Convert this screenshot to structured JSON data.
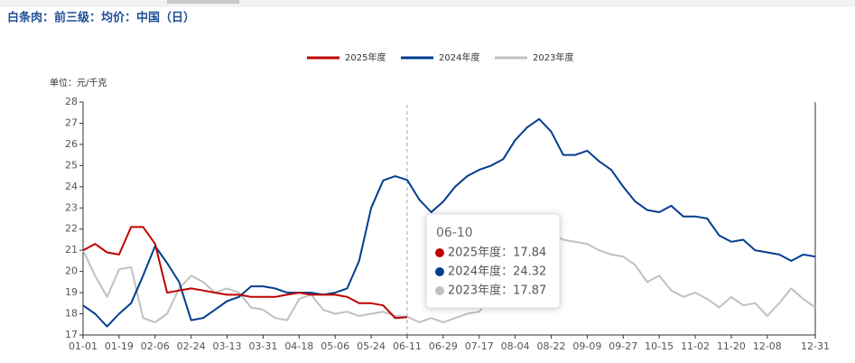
{
  "chart_data": {
    "type": "line",
    "title": "白条肉：前三级：均价：中国（日）",
    "y_label": "单位：元/千克",
    "categories": [
      "01-01",
      null,
      null,
      "01-19",
      null,
      null,
      "02-06",
      null,
      null,
      "02-24",
      null,
      null,
      "03-13",
      null,
      null,
      "03-31",
      null,
      null,
      "04-18",
      null,
      null,
      "05-06",
      null,
      null,
      "05-24",
      null,
      null,
      "06-11",
      null,
      null,
      "06-29",
      null,
      null,
      "07-17",
      null,
      null,
      "08-04",
      null,
      null,
      "08-22",
      null,
      null,
      "09-09",
      null,
      null,
      "09-27",
      null,
      null,
      "10-15",
      null,
      null,
      "11-02",
      null,
      null,
      "11-20",
      null,
      null,
      "12-08",
      null,
      null,
      null,
      "12-31"
    ],
    "series": [
      {
        "name": "2025年度",
        "color": "#c00000",
        "values": [
          21.0,
          21.3,
          20.9,
          20.8,
          22.1,
          22.1,
          21.3,
          19.0,
          19.1,
          19.2,
          19.1,
          19.0,
          18.9,
          18.9,
          18.8,
          18.8,
          18.8,
          18.9,
          19.0,
          18.9,
          18.9,
          18.9,
          18.8,
          18.5,
          18.5,
          18.4,
          17.8,
          17.84,
          null,
          null,
          null,
          null,
          null,
          null,
          null,
          null,
          null,
          null,
          null,
          null,
          null,
          null,
          null,
          null,
          null,
          null,
          null,
          null,
          null,
          null,
          null,
          null,
          null,
          null,
          null,
          null,
          null,
          null,
          null,
          null,
          null,
          null
        ]
      },
      {
        "name": "2024年度",
        "color": "#003d8f",
        "values": [
          18.4,
          18.0,
          17.4,
          18.0,
          18.5,
          19.8,
          21.2,
          20.4,
          19.5,
          17.7,
          17.8,
          18.2,
          18.6,
          18.8,
          19.3,
          19.3,
          19.2,
          19.0,
          19.0,
          19.0,
          18.9,
          19.0,
          19.2,
          20.5,
          23.0,
          24.3,
          24.5,
          24.32,
          23.4,
          22.8,
          23.3,
          24.0,
          24.5,
          24.8,
          25.0,
          25.3,
          26.2,
          26.8,
          27.2,
          26.6,
          25.5,
          25.5,
          25.7,
          25.2,
          24.8,
          24.0,
          23.3,
          22.9,
          22.8,
          23.1,
          22.6,
          22.6,
          22.5,
          21.7,
          21.4,
          21.5,
          21.0,
          20.9,
          20.8,
          20.5,
          20.8,
          20.7
        ]
      },
      {
        "name": "2023年度",
        "color": "#c0c0c0",
        "values": [
          21.0,
          19.8,
          18.8,
          20.1,
          20.2,
          17.8,
          17.6,
          18.0,
          19.2,
          19.8,
          19.5,
          19.0,
          19.2,
          19.0,
          18.3,
          18.2,
          17.8,
          17.7,
          18.7,
          18.9,
          18.2,
          18.0,
          18.1,
          17.9,
          18.0,
          18.1,
          17.9,
          17.87,
          17.6,
          17.8,
          17.6,
          17.8,
          18.0,
          18.1,
          18.8,
          20.0,
          21.3,
          21.6,
          21.5,
          21.8,
          21.5,
          21.4,
          21.3,
          21.0,
          20.8,
          20.7,
          20.3,
          19.5,
          19.8,
          19.1,
          18.8,
          19.0,
          18.7,
          18.3,
          18.8,
          18.4,
          18.5,
          17.9,
          18.5,
          19.2,
          18.7,
          18.3
        ]
      }
    ],
    "ylim": [
      17,
      28
    ],
    "yticks": [
      17,
      18,
      19,
      20,
      21,
      22,
      23,
      24,
      25,
      26,
      27,
      28
    ],
    "tooltip": {
      "title": "06-10",
      "rows": [
        "2025年度：17.84",
        "2024年度：24.32",
        "2023年度：17.87"
      ]
    }
  }
}
